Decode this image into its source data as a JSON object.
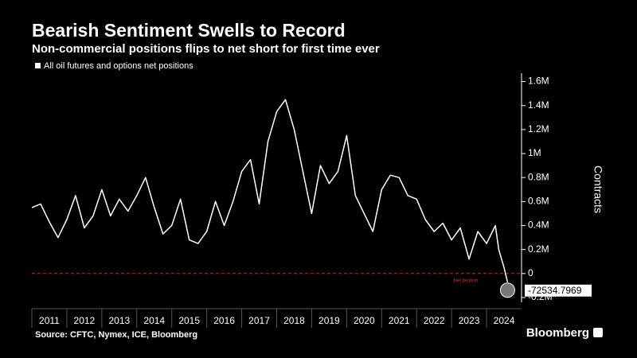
{
  "chart_data": {
    "type": "line",
    "title": "Bearish Sentiment Swells to Record",
    "subtitle": "Non-commercial positions flips to net short for first time ever",
    "y_label": "Contracts",
    "annotation": "Net bearish",
    "source": "Source: CFTC, Nymex, ICE, Bloomberg",
    "brand": "Bloomberg",
    "x": [
      2011.0,
      2011.25,
      2011.5,
      2011.75,
      2012.0,
      2012.25,
      2012.5,
      2012.75,
      2013.0,
      2013.25,
      2013.5,
      2013.75,
      2014.0,
      2014.25,
      2014.5,
      2014.75,
      2015.0,
      2015.25,
      2015.5,
      2015.75,
      2016.0,
      2016.25,
      2016.5,
      2016.75,
      2017.0,
      2017.25,
      2017.5,
      2017.75,
      2018.0,
      2018.25,
      2018.5,
      2018.75,
      2019.0,
      2019.25,
      2019.5,
      2019.75,
      2020.0,
      2020.25,
      2020.5,
      2020.75,
      2021.0,
      2021.25,
      2021.5,
      2021.75,
      2022.0,
      2022.25,
      2022.5,
      2022.75,
      2023.0,
      2023.25,
      2023.5,
      2023.75,
      2024.0,
      2024.25,
      2024.35,
      2024.5,
      2024.6
    ],
    "series": [
      {
        "name": "All oil futures and options net positions",
        "color": "#ffffff",
        "values": [
          550000,
          580000,
          430000,
          300000,
          450000,
          650000,
          380000,
          480000,
          700000,
          480000,
          620000,
          520000,
          650000,
          800000,
          550000,
          330000,
          400000,
          620000,
          280000,
          250000,
          350000,
          600000,
          400000,
          600000,
          850000,
          950000,
          580000,
          1100000,
          1350000,
          1450000,
          1200000,
          850000,
          500000,
          900000,
          750000,
          850000,
          1150000,
          650000,
          500000,
          350000,
          700000,
          820000,
          800000,
          650000,
          620000,
          450000,
          350000,
          420000,
          280000,
          380000,
          120000,
          350000,
          250000,
          400000,
          200000,
          50000,
          -72534.7969
        ]
      }
    ],
    "xlim": [
      2011,
      2025
    ],
    "xticks": [
      2011,
      2012,
      2013,
      2014,
      2015,
      2016,
      2017,
      2018,
      2019,
      2020,
      2021,
      2022,
      2023,
      2024
    ],
    "ylim": [
      -240000,
      1670000
    ],
    "yticks": [
      {
        "value": -200000,
        "label": "-0.2M"
      },
      0,
      {
        "value": 200000,
        "label": "0.2M"
      },
      {
        "value": 400000,
        "label": "0.4M"
      },
      {
        "value": 600000,
        "label": "0.6M"
      },
      {
        "value": 800000,
        "label": "0.8M"
      },
      {
        "value": 1000000,
        "label": "1M"
      },
      {
        "value": 1200000,
        "label": "1.2M"
      },
      {
        "value": 1400000,
        "label": "1.4M"
      },
      {
        "value": 1600000,
        "label": "1.6M"
      }
    ],
    "reference_color": "#e0252b"
  }
}
